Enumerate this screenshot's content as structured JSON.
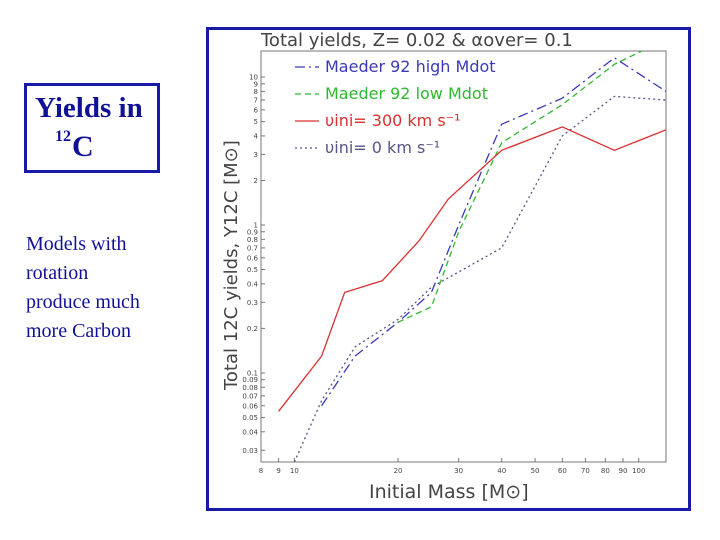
{
  "heading": {
    "line1": "Yields in",
    "isotope_mass": "12",
    "isotope_symbol": "C"
  },
  "note_lines": [
    "Models with",
    "rotation",
    "produce much",
    "more Carbon"
  ],
  "colors": {
    "accent": "#1a1aa8",
    "text": "#111196"
  },
  "chart_data": {
    "type": "line",
    "title": "Total yields, Z= 0.02 & αover= 0.1",
    "xlabel": "Initial Mass [M⊙]",
    "ylabel": "Total 12C yields, Y12C [M⊙]",
    "xscale": "log",
    "yscale": "log",
    "xlim": [
      8,
      120
    ],
    "ylim": [
      0.025,
      15
    ],
    "x_ticks": [
      "8",
      "9",
      "10",
      "20",
      "30",
      "40",
      "50",
      "60",
      "70",
      "80",
      "90",
      "100"
    ],
    "y_ticks": [
      "0.03",
      "0.04",
      "0.05",
      "0.06",
      "0.07",
      "0.08",
      "0.09",
      "0.1",
      "0.2",
      "0.3",
      "0.4",
      "0.5",
      "0.6",
      "0.7",
      "0.8",
      "0.9",
      "1",
      "2",
      "3",
      "4",
      "5",
      "6",
      "7",
      "8",
      "9",
      "10"
    ],
    "legend_position": "top-right",
    "series": [
      {
        "name": "Maeder 92 high Mdot",
        "color": "#3a3ab8",
        "dash": "10,4,2,4",
        "x": [
          12,
          15,
          20,
          25,
          30,
          40,
          60,
          85,
          120
        ],
        "y": [
          0.06,
          0.13,
          0.22,
          0.35,
          1.0,
          4.8,
          7.2,
          13.5,
          8.0
        ]
      },
      {
        "name": "Maeder 92 low Mdot",
        "color": "#30b830",
        "dash": "6,4",
        "x": [
          20,
          25,
          30,
          40,
          60,
          85,
          120
        ],
        "y": [
          0.22,
          0.28,
          0.9,
          3.6,
          6.5,
          12.2,
          18.0
        ]
      },
      {
        "name": "υini= 300 km s⁻¹",
        "color": "#d83030",
        "dash": "",
        "x": [
          9,
          12,
          14,
          18,
          23,
          28,
          40,
          60,
          85,
          120
        ],
        "y": [
          0.055,
          0.13,
          0.35,
          0.42,
          0.78,
          1.5,
          3.2,
          4.6,
          3.2,
          4.4
        ]
      },
      {
        "name": "υini= 0 km s⁻¹",
        "color": "#555588",
        "dash": "2,3",
        "x": [
          10,
          12,
          15,
          20,
          25,
          40,
          60,
          85,
          120
        ],
        "y": [
          0.025,
          0.065,
          0.15,
          0.23,
          0.38,
          0.7,
          4.0,
          7.4,
          7.0
        ]
      }
    ]
  }
}
